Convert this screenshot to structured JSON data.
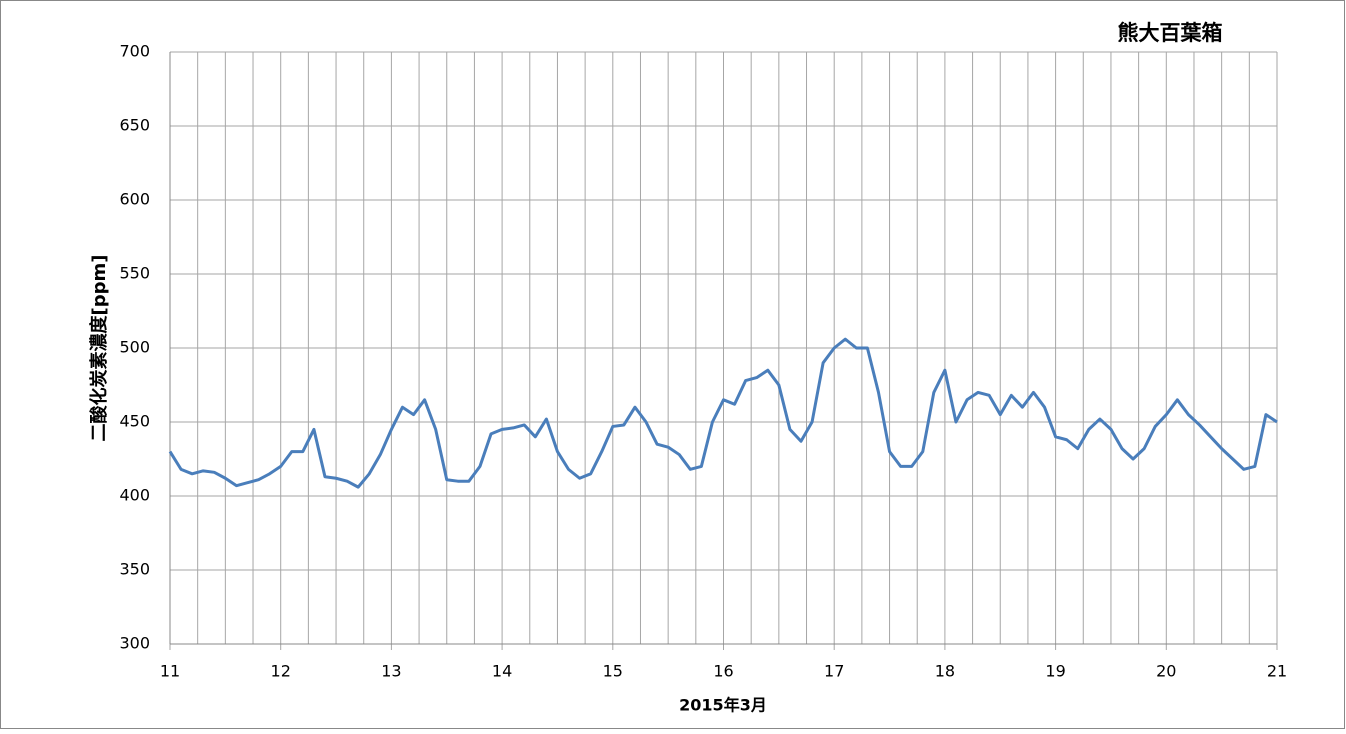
{
  "chart_data": {
    "type": "line",
    "title": "熊大百葉箱",
    "x_label": "2015年3月",
    "y_label": "二酸化炭素濃度[ppm]",
    "x": [
      11.0,
      11.1,
      11.2,
      11.3,
      11.4,
      11.5,
      11.6,
      11.7,
      11.8,
      11.9,
      12.0,
      12.1,
      12.2,
      12.3,
      12.4,
      12.5,
      12.6,
      12.7,
      12.8,
      12.9,
      13.0,
      13.1,
      13.2,
      13.3,
      13.4,
      13.5,
      13.6,
      13.7,
      13.8,
      13.9,
      14.0,
      14.1,
      14.2,
      14.3,
      14.4,
      14.5,
      14.6,
      14.7,
      14.8,
      14.9,
      15.0,
      15.1,
      15.2,
      15.3,
      15.4,
      15.5,
      15.6,
      15.7,
      15.8,
      15.9,
      16.0,
      16.1,
      16.2,
      16.3,
      16.4,
      16.5,
      16.6,
      16.7,
      16.8,
      16.9,
      17.0,
      17.1,
      17.2,
      17.3,
      17.4,
      17.5,
      17.6,
      17.7,
      17.8,
      17.9,
      18.0,
      18.1,
      18.2,
      18.3,
      18.4,
      18.5,
      18.6,
      18.7,
      18.8,
      18.9,
      19.0,
      19.1,
      19.2,
      19.3,
      19.4,
      19.5,
      19.6,
      19.7,
      19.8,
      19.9,
      20.0,
      20.1,
      20.2,
      20.3,
      20.4,
      20.5,
      20.6,
      20.7,
      20.8,
      20.9,
      21.0
    ],
    "series": [
      {
        "name": "二酸化炭素濃度",
        "color": "#4a7ebb",
        "values": [
          430,
          418,
          415,
          417,
          416,
          412,
          407,
          409,
          411,
          415,
          420,
          430,
          430,
          445,
          413,
          412,
          410,
          406,
          415,
          428,
          445,
          460,
          455,
          465,
          445,
          411,
          410,
          410,
          420,
          442,
          445,
          446,
          448,
          440,
          452,
          430,
          418,
          412,
          415,
          430,
          447,
          448,
          460,
          450,
          435,
          433,
          428,
          418,
          420,
          450,
          465,
          462,
          478,
          480,
          485,
          475,
          445,
          437,
          450,
          490,
          500,
          506,
          500,
          500,
          470,
          430,
          420,
          420,
          430,
          470,
          485,
          450,
          465,
          470,
          468,
          455,
          468,
          460,
          470,
          460,
          440,
          438,
          432,
          445,
          452,
          445,
          432,
          425,
          432,
          447,
          455,
          465,
          455,
          448,
          440,
          432,
          425,
          418,
          420,
          455,
          450
        ]
      }
    ],
    "xlim": [
      11,
      21
    ],
    "xticks": [
      11,
      12,
      13,
      14,
      15,
      16,
      17,
      18,
      19,
      20,
      21
    ],
    "xminorticks": [
      11.25,
      11.5,
      11.75,
      12.25,
      12.5,
      12.75,
      13.25,
      13.5,
      13.75,
      14.25,
      14.5,
      14.75,
      15.25,
      15.5,
      15.75,
      16.25,
      16.5,
      16.75,
      17.25,
      17.5,
      17.75,
      18.25,
      18.5,
      18.75,
      19.25,
      19.5,
      19.75,
      20.25,
      20.5,
      20.75
    ],
    "ylim": [
      300,
      700
    ],
    "yticks": [
      300,
      350,
      400,
      450,
      500,
      550,
      600,
      650,
      700
    ],
    "grid": true
  }
}
